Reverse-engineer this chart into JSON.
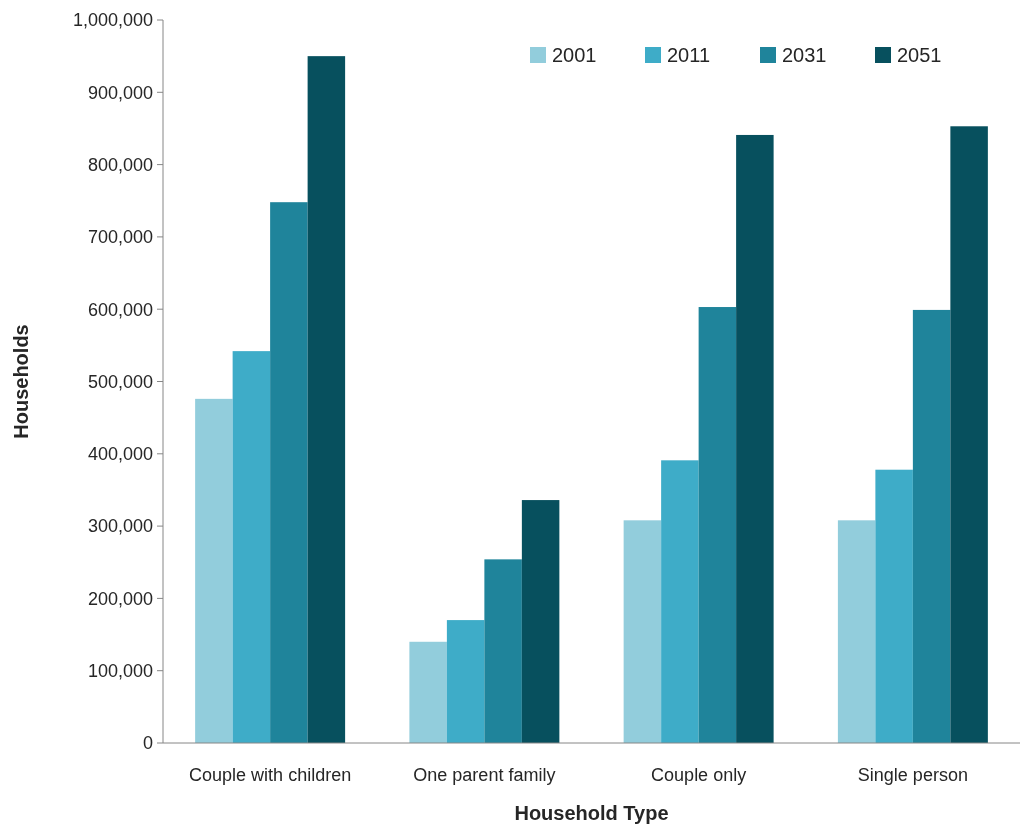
{
  "chart_data": {
    "type": "bar",
    "xlabel": "Household Type",
    "ylabel": "Households",
    "categories": [
      "Couple with children",
      "One parent family",
      "Couple only",
      "Single person"
    ],
    "series": [
      {
        "name": "2001",
        "color": "#92cddc",
        "values": [
          476000,
          140000,
          308000,
          308000
        ]
      },
      {
        "name": "2011",
        "color": "#3eacc8",
        "values": [
          542000,
          170000,
          391000,
          378000
        ]
      },
      {
        "name": "2031",
        "color": "#1f849b",
        "values": [
          748000,
          254000,
          603000,
          599000
        ]
      },
      {
        "name": "2051",
        "color": "#07505e",
        "values": [
          950000,
          336000,
          841000,
          853000
        ]
      }
    ],
    "ylim": [
      0,
      1000000
    ],
    "yticks": [
      {
        "value": 0,
        "label": "0"
      },
      {
        "value": 100000,
        "label": "100,000"
      },
      {
        "value": 200000,
        "label": "200,000"
      },
      {
        "value": 300000,
        "label": "300,000"
      },
      {
        "value": 400000,
        "label": "400,000"
      },
      {
        "value": 500000,
        "label": "500,000"
      },
      {
        "value": 600000,
        "label": "600,000"
      },
      {
        "value": 700000,
        "label": "700,000"
      },
      {
        "value": 800000,
        "label": "800,000"
      },
      {
        "value": 900000,
        "label": "900,000"
      },
      {
        "value": 1000000,
        "label": "1,000,000"
      }
    ],
    "grid": false,
    "legend": "top right"
  }
}
